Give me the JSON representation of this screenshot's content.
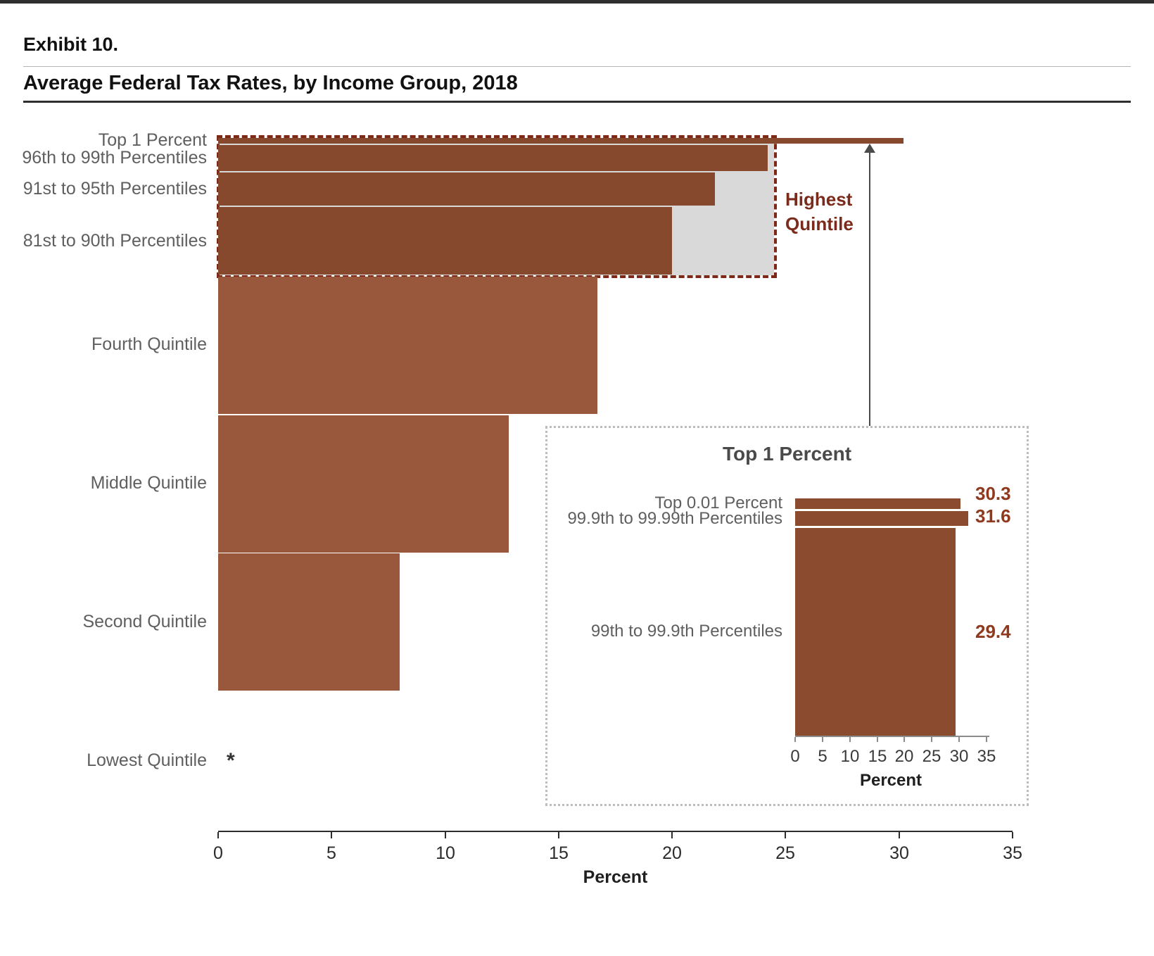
{
  "header": {
    "exhibit": "Exhibit 10.",
    "title": "Average Federal Tax Rates, by Income Group, 2018"
  },
  "chart_data": {
    "type": "bar",
    "orientation": "horizontal",
    "title": "Average Federal Tax Rates, by Income Group, 2018",
    "xlabel": "Percent",
    "xlim": [
      0,
      35
    ],
    "xticks": [
      0,
      5,
      10,
      15,
      20,
      25,
      30,
      35
    ],
    "categories": [
      "Top 1 Percent",
      "96th to 99th Percentiles",
      "91st to 95th Percentiles",
      "81st to 90th Percentiles",
      "Fourth Quintile",
      "Middle Quintile",
      "Second Quintile",
      "Lowest Quintile"
    ],
    "values": [
      30.2,
      24.2,
      21.9,
      20,
      16.7,
      12.8,
      8,
      null
    ],
    "bar_thickness_shares": [
      1,
      4,
      5,
      10,
      20,
      20,
      20,
      20
    ],
    "lowest_quintile_marker": "*",
    "highest_quintile": {
      "label": "Highest Quintile",
      "value": 24.5
    },
    "inset": {
      "title": "Top 1 Percent",
      "xlabel": "Percent",
      "xlim": [
        0,
        35
      ],
      "xticks": [
        0,
        5,
        10,
        15,
        20,
        25,
        30,
        35
      ],
      "categories": [
        "Top 0.01 Percent",
        "99.9th to 99.99th Percentiles",
        "99th to 99.9th Percentiles"
      ],
      "values": [
        30.3,
        31.6,
        29.4
      ]
    },
    "colors": {
      "bar_percentile": "#87492D",
      "bar_quintile": "#99583C",
      "bar_inset": "#8B4B2F",
      "gray_fill": "#D9D9D9",
      "dashed_box": "#7E2817",
      "highlight_label": "#7B2B1C",
      "value_label": "#8F3A1E",
      "category_text": "#5F5F5F",
      "axis_text": "#2B2B2B"
    }
  }
}
